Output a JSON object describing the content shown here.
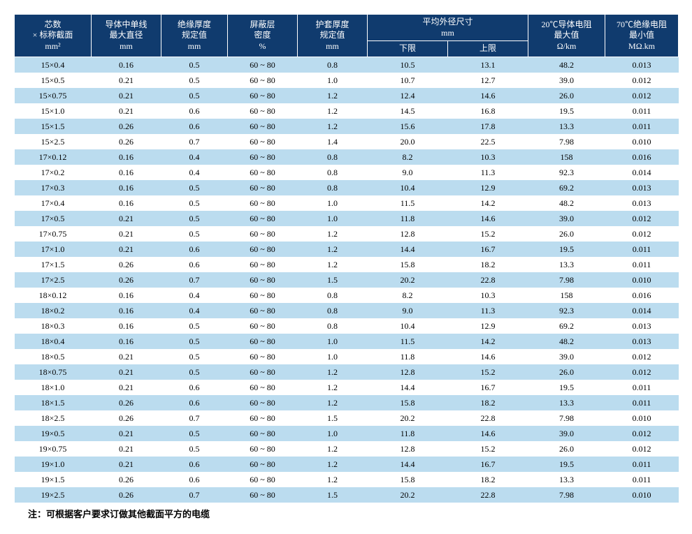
{
  "table": {
    "header_bg": "#103b6e",
    "header_fg": "#ffffff",
    "row_odd_bg": "#bbdcef",
    "row_even_bg": "#ffffff",
    "columns": [
      {
        "label_line1": "芯数",
        "label_line2": "× 标称截面",
        "unit": "mm²"
      },
      {
        "label_line1": "导体中单线",
        "label_line2": "最大直径",
        "unit": "mm"
      },
      {
        "label_line1": "绝缘厚度",
        "label_line2": "规定值",
        "unit": "mm"
      },
      {
        "label_line1": "屏蔽层",
        "label_line2": "密度",
        "unit": "%"
      },
      {
        "label_line1": "护套厚度",
        "label_line2": "规定值",
        "unit": "mm"
      },
      {
        "label_group": "平均外径尺寸",
        "unit_group": "mm",
        "sub1": "下限",
        "sub2": "上限"
      },
      {
        "label_line1": "20℃导体电阻",
        "label_line2": "最大值",
        "unit": "Ω/km"
      },
      {
        "label_line1": "70℃绝缘电阻",
        "label_line2": "最小值",
        "unit": "MΩ.km"
      }
    ],
    "rows": [
      [
        "15×0.4",
        "0.16",
        "0.5",
        "60 ~ 80",
        "0.8",
        "10.5",
        "13.1",
        "48.2",
        "0.013"
      ],
      [
        "15×0.5",
        "0.21",
        "0.5",
        "60 ~ 80",
        "1.0",
        "10.7",
        "12.7",
        "39.0",
        "0.012"
      ],
      [
        "15×0.75",
        "0.21",
        "0.5",
        "60 ~ 80",
        "1.2",
        "12.4",
        "14.6",
        "26.0",
        "0.012"
      ],
      [
        "15×1.0",
        "0.21",
        "0.6",
        "60 ~ 80",
        "1.2",
        "14.5",
        "16.8",
        "19.5",
        "0.011"
      ],
      [
        "15×1.5",
        "0.26",
        "0.6",
        "60 ~ 80",
        "1.2",
        "15.6",
        "17.8",
        "13.3",
        "0.011"
      ],
      [
        "15×2.5",
        "0.26",
        "0.7",
        "60 ~ 80",
        "1.4",
        "20.0",
        "22.5",
        "7.98",
        "0.010"
      ],
      [
        "17×0.12",
        "0.16",
        "0.4",
        "60 ~ 80",
        "0.8",
        "8.2",
        "10.3",
        "158",
        "0.016"
      ],
      [
        "17×0.2",
        "0.16",
        "0.4",
        "60 ~ 80",
        "0.8",
        "9.0",
        "11.3",
        "92.3",
        "0.014"
      ],
      [
        "17×0.3",
        "0.16",
        "0.5",
        "60 ~ 80",
        "0.8",
        "10.4",
        "12.9",
        "69.2",
        "0.013"
      ],
      [
        "17×0.4",
        "0.16",
        "0.5",
        "60 ~ 80",
        "1.0",
        "11.5",
        "14.2",
        "48.2",
        "0.013"
      ],
      [
        "17×0.5",
        "0.21",
        "0.5",
        "60 ~ 80",
        "1.0",
        "11.8",
        "14.6",
        "39.0",
        "0.012"
      ],
      [
        "17×0.75",
        "0.21",
        "0.5",
        "60 ~ 80",
        "1.2",
        "12.8",
        "15.2",
        "26.0",
        "0.012"
      ],
      [
        "17×1.0",
        "0.21",
        "0.6",
        "60 ~ 80",
        "1.2",
        "14.4",
        "16.7",
        "19.5",
        "0.011"
      ],
      [
        "17×1.5",
        "0.26",
        "0.6",
        "60 ~ 80",
        "1.2",
        "15.8",
        "18.2",
        "13.3",
        "0.011"
      ],
      [
        "17×2.5",
        "0.26",
        "0.7",
        "60 ~ 80",
        "1.5",
        "20.2",
        "22.8",
        "7.98",
        "0.010"
      ],
      [
        "18×0.12",
        "0.16",
        "0.4",
        "60 ~ 80",
        "0.8",
        "8.2",
        "10.3",
        "158",
        "0.016"
      ],
      [
        "18×0.2",
        "0.16",
        "0.4",
        "60 ~ 80",
        "0.8",
        "9.0",
        "11.3",
        "92.3",
        "0.014"
      ],
      [
        "18×0.3",
        "0.16",
        "0.5",
        "60 ~ 80",
        "0.8",
        "10.4",
        "12.9",
        "69.2",
        "0.013"
      ],
      [
        "18×0.4",
        "0.16",
        "0.5",
        "60 ~ 80",
        "1.0",
        "11.5",
        "14.2",
        "48.2",
        "0.013"
      ],
      [
        "18×0.5",
        "0.21",
        "0.5",
        "60 ~ 80",
        "1.0",
        "11.8",
        "14.6",
        "39.0",
        "0.012"
      ],
      [
        "18×0.75",
        "0.21",
        "0.5",
        "60 ~ 80",
        "1.2",
        "12.8",
        "15.2",
        "26.0",
        "0.012"
      ],
      [
        "18×1.0",
        "0.21",
        "0.6",
        "60 ~ 80",
        "1.2",
        "14.4",
        "16.7",
        "19.5",
        "0.011"
      ],
      [
        "18×1.5",
        "0.26",
        "0.6",
        "60 ~ 80",
        "1.2",
        "15.8",
        "18.2",
        "13.3",
        "0.011"
      ],
      [
        "18×2.5",
        "0.26",
        "0.7",
        "60 ~ 80",
        "1.5",
        "20.2",
        "22.8",
        "7.98",
        "0.010"
      ],
      [
        "19×0.5",
        "0.21",
        "0.5",
        "60 ~ 80",
        "1.0",
        "11.8",
        "14.6",
        "39.0",
        "0.012"
      ],
      [
        "19×0.75",
        "0.21",
        "0.5",
        "60 ~ 80",
        "1.2",
        "12.8",
        "15.2",
        "26.0",
        "0.012"
      ],
      [
        "19×1.0",
        "0.21",
        "0.6",
        "60 ~ 80",
        "1.2",
        "14.4",
        "16.7",
        "19.5",
        "0.011"
      ],
      [
        "19×1.5",
        "0.26",
        "0.6",
        "60 ~ 80",
        "1.2",
        "15.8",
        "18.2",
        "13.3",
        "0.011"
      ],
      [
        "19×2.5",
        "0.26",
        "0.7",
        "60 ~ 80",
        "1.5",
        "20.2",
        "22.8",
        "7.98",
        "0.010"
      ]
    ]
  },
  "footnote": "注：可根据客户要求订做其他截面平方的电缆"
}
